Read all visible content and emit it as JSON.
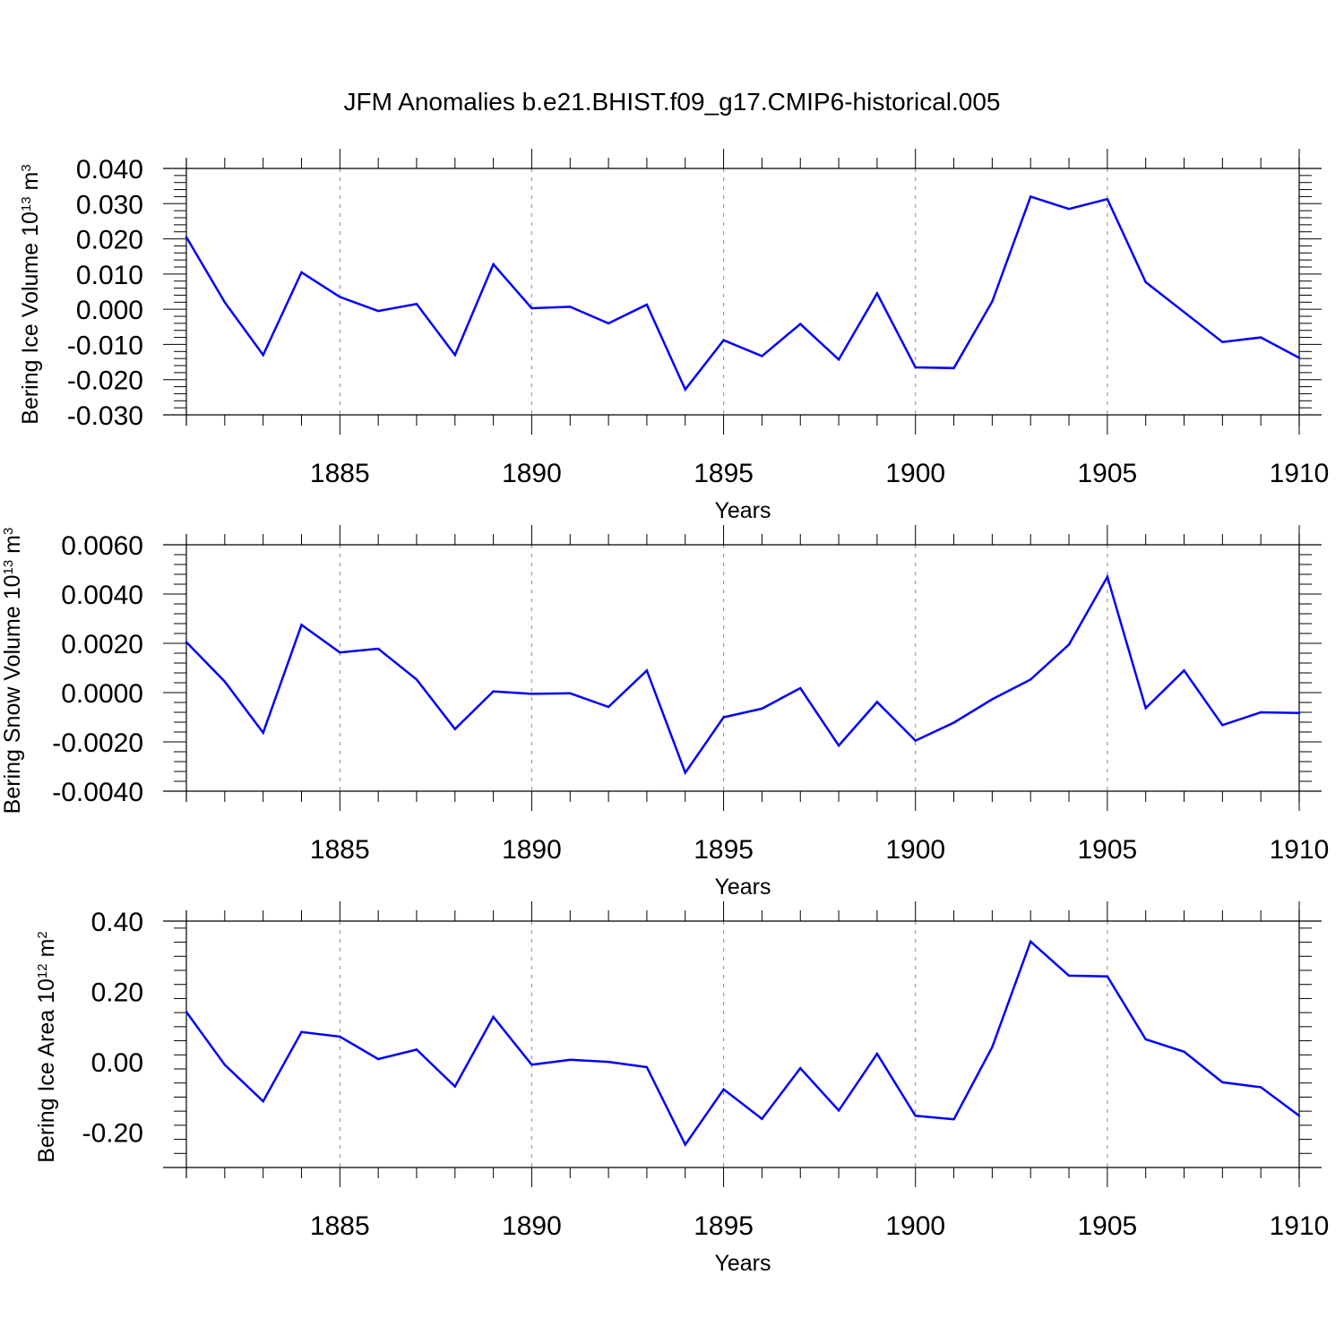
{
  "figure": {
    "title": "JFM Anomalies b.e21.BHIST.f09_g17.CMIP6-historical.005",
    "line_color": "#0000ff",
    "grid_color": "#999999"
  },
  "chart_data": [
    {
      "type": "line",
      "title": "",
      "xlabel": "Years",
      "ylabel": {
        "text": "Bering Ice Volume 10",
        "sup": "13",
        "unit": " m",
        "unit_sup": "3"
      },
      "xlim": [
        1881,
        1910
      ],
      "ylim": [
        -0.03,
        0.04
      ],
      "yticks": [
        0.04,
        0.03,
        0.02,
        0.01,
        0.0,
        -0.01,
        -0.02,
        -0.03
      ],
      "ytick_labels": [
        "0.040",
        "0.030",
        "0.020",
        "0.010",
        "0.000",
        "-0.010",
        "-0.020",
        "-0.030"
      ],
      "xticks": [
        1885,
        1890,
        1895,
        1900,
        1905,
        1910
      ],
      "xtick_labels": [
        "1885",
        "1890",
        "1895",
        "1900",
        "1905",
        "1910"
      ],
      "grid": "vertical dashed at major x ticks",
      "series": [
        {
          "x": [
            1881,
            1882,
            1883,
            1884,
            1885,
            1886,
            1887,
            1888,
            1889,
            1890,
            1891,
            1892,
            1893,
            1894,
            1895,
            1896,
            1897,
            1898,
            1899,
            1900,
            1901,
            1902,
            1903,
            1904,
            1905,
            1906,
            1907,
            1908,
            1909,
            1910
          ],
          "values": [
            0.0205,
            0.002,
            -0.013,
            0.0105,
            0.0035,
            -0.0005,
            0.0015,
            -0.013,
            0.0128,
            0.0003,
            0.0007,
            -0.004,
            0.0013,
            -0.0228,
            -0.0088,
            -0.0133,
            -0.0042,
            -0.0143,
            0.0045,
            -0.0165,
            -0.0167,
            0.0022,
            0.032,
            0.0285,
            0.0313,
            0.0077,
            -0.0008,
            -0.0093,
            -0.008,
            -0.0138
          ]
        }
      ]
    },
    {
      "type": "line",
      "title": "",
      "xlabel": "Years",
      "ylabel": {
        "text": "Bering Snow Volume 10",
        "sup": "13",
        "unit": " m",
        "unit_sup": "3"
      },
      "xlim": [
        1881,
        1910
      ],
      "ylim": [
        -0.004,
        0.006
      ],
      "yticks": [
        0.006,
        0.004,
        0.002,
        0.0,
        -0.002,
        -0.004
      ],
      "ytick_labels": [
        "0.0060",
        "0.0040",
        "0.0020",
        "0.0000",
        "-0.0020",
        "-0.0040"
      ],
      "xticks": [
        1885,
        1890,
        1895,
        1900,
        1905,
        1910
      ],
      "xtick_labels": [
        "1885",
        "1890",
        "1895",
        "1900",
        "1905",
        "1910"
      ],
      "grid": "vertical dashed at major x ticks",
      "series": [
        {
          "x": [
            1881,
            1882,
            1883,
            1884,
            1885,
            1886,
            1887,
            1888,
            1889,
            1890,
            1891,
            1892,
            1893,
            1894,
            1895,
            1896,
            1897,
            1898,
            1899,
            1900,
            1901,
            1902,
            1903,
            1904,
            1905,
            1906,
            1907,
            1908,
            1909,
            1910
          ],
          "values": [
            0.00205,
            0.00045,
            -0.00163,
            0.00275,
            0.00163,
            0.00178,
            0.00053,
            -0.00148,
            5e-05,
            -5e-05,
            -3e-05,
            -0.00058,
            0.0009,
            -0.00325,
            -0.001,
            -0.00065,
            0.00018,
            -0.00215,
            -0.00038,
            -0.00195,
            -0.00122,
            -0.00027,
            0.00053,
            0.00195,
            0.0047,
            -0.00063,
            0.0009,
            -0.00132,
            -0.0008,
            -0.00083
          ]
        }
      ]
    },
    {
      "type": "line",
      "title": "",
      "xlabel": "Years",
      "ylabel": {
        "text": "Bering Ice Area 10",
        "sup": "12",
        "unit": " m",
        "unit_sup": "2"
      },
      "xlim": [
        1881,
        1910
      ],
      "ylim": [
        -0.3,
        0.4
      ],
      "yticks": [
        0.4,
        0.2,
        0.0,
        -0.2
      ],
      "ytick_labels": [
        "0.40",
        "0.20",
        "0.00",
        "-0.20"
      ],
      "xticks": [
        1885,
        1890,
        1895,
        1900,
        1905,
        1910
      ],
      "xtick_labels": [
        "1885",
        "1890",
        "1895",
        "1900",
        "1905",
        "1910"
      ],
      "grid": "vertical dashed at major x ticks",
      "series": [
        {
          "x": [
            1881,
            1882,
            1883,
            1884,
            1885,
            1886,
            1887,
            1888,
            1889,
            1890,
            1891,
            1892,
            1893,
            1894,
            1895,
            1896,
            1897,
            1898,
            1899,
            1900,
            1901,
            1902,
            1903,
            1904,
            1905,
            1906,
            1907,
            1908,
            1909,
            1910
          ],
          "values": [
            0.142,
            -0.008,
            -0.112,
            0.085,
            0.072,
            0.008,
            0.035,
            -0.07,
            0.128,
            -0.008,
            0.006,
            0.0,
            -0.015,
            -0.235,
            -0.078,
            -0.162,
            -0.018,
            -0.138,
            0.023,
            -0.153,
            -0.163,
            0.042,
            0.342,
            0.245,
            0.243,
            0.064,
            0.029,
            -0.058,
            -0.072,
            -0.153
          ]
        }
      ]
    }
  ]
}
